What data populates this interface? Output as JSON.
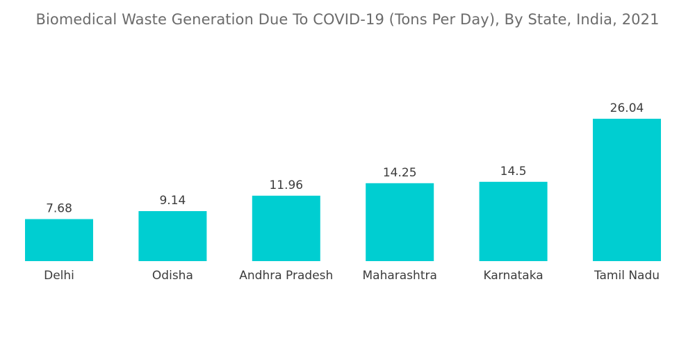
{
  "chart_data": {
    "type": "bar",
    "title": "Biomedical Waste Generation Due To COVID-19 (Tons Per Day), By State, India, 2021",
    "xlabel": "",
    "ylabel": "",
    "categories": [
      "Delhi",
      "Odisha",
      "Andhra Pradesh",
      "Maharashtra",
      "Karnataka",
      "Tamil Nadu"
    ],
    "values": [
      7.68,
      9.14,
      11.96,
      14.25,
      14.5,
      26.04
    ],
    "value_labels": [
      "7.68",
      "9.14",
      "11.96",
      "14.25",
      "14.5",
      "26.04"
    ],
    "ylim": [
      0,
      26.04
    ],
    "grid": false,
    "legend": "none",
    "bar_color": "#00CED1"
  }
}
